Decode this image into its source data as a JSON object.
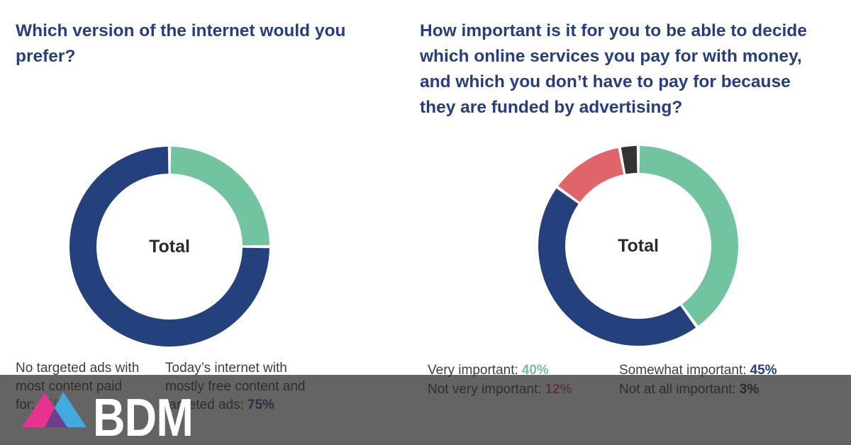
{
  "colors": {
    "accent_navy": "#24417e",
    "accent_green": "#72c4a1",
    "accent_red": "#e0646a",
    "accent_dark": "#333333",
    "title_navy": "#273e7a",
    "legend_text": "#3d3d3d",
    "total_text": "#2b2b2b",
    "overlay": "rgba(40,40,40,0.72)",
    "logo_pink": "#e6338c",
    "logo_blue": "#41aadf",
    "logo_purple": "#6e3e8c",
    "logo_text_color": "#ffffff"
  },
  "left_chart": {
    "title_lines": [
      "Which version of the internet would you",
      "prefer?"
    ],
    "legend": [
      {
        "lines": [
          "No targeted ads with",
          "most content paid",
          "for:"
        ],
        "value": "25%"
      },
      {
        "lines": [
          "Today’s internet with",
          "mostly free content and",
          "targeted ads:"
        ],
        "value": "75%"
      }
    ]
  },
  "right_chart": {
    "title_lines": [
      "How important is it for you to be able to decide",
      "which online services you pay for with money,",
      "and which you don’t have to pay for because",
      "they are funded by advertising?"
    ],
    "legend": [
      {
        "label": "Very important:",
        "value": "40%"
      },
      {
        "label": "Not very important:",
        "value": "12%"
      },
      {
        "label": "Somewhat important:",
        "value": "45%"
      },
      {
        "label": "Not at all important:",
        "value": "3%"
      }
    ]
  },
  "logo": {
    "text": "BDM"
  },
  "chart_data": [
    {
      "type": "pie",
      "subtype": "donut",
      "title": "Which version of the internet would you prefer?",
      "center_label": "Total",
      "start_angle_deg": 0,
      "direction": "clockwise",
      "segments": [
        {
          "label": "No targeted ads with most content paid for",
          "value": 25,
          "color": "#72c4a1"
        },
        {
          "label": "Today’s internet with mostly free content and targeted ads",
          "value": 75,
          "color": "#24417e"
        }
      ]
    },
    {
      "type": "pie",
      "subtype": "donut",
      "title": "How important is it for you to be able to decide which online services you pay for with money, and which you don’t have to pay for because they are funded by advertising?",
      "center_label": "Total",
      "start_angle_deg": 0,
      "direction": "clockwise",
      "segments": [
        {
          "label": "Very important",
          "value": 40,
          "color": "#72c4a1"
        },
        {
          "label": "Somewhat important",
          "value": 45,
          "color": "#24417e"
        },
        {
          "label": "Not very important",
          "value": 12,
          "color": "#e0646a"
        },
        {
          "label": "Not at all important",
          "value": 3,
          "color": "#333333"
        }
      ]
    }
  ]
}
